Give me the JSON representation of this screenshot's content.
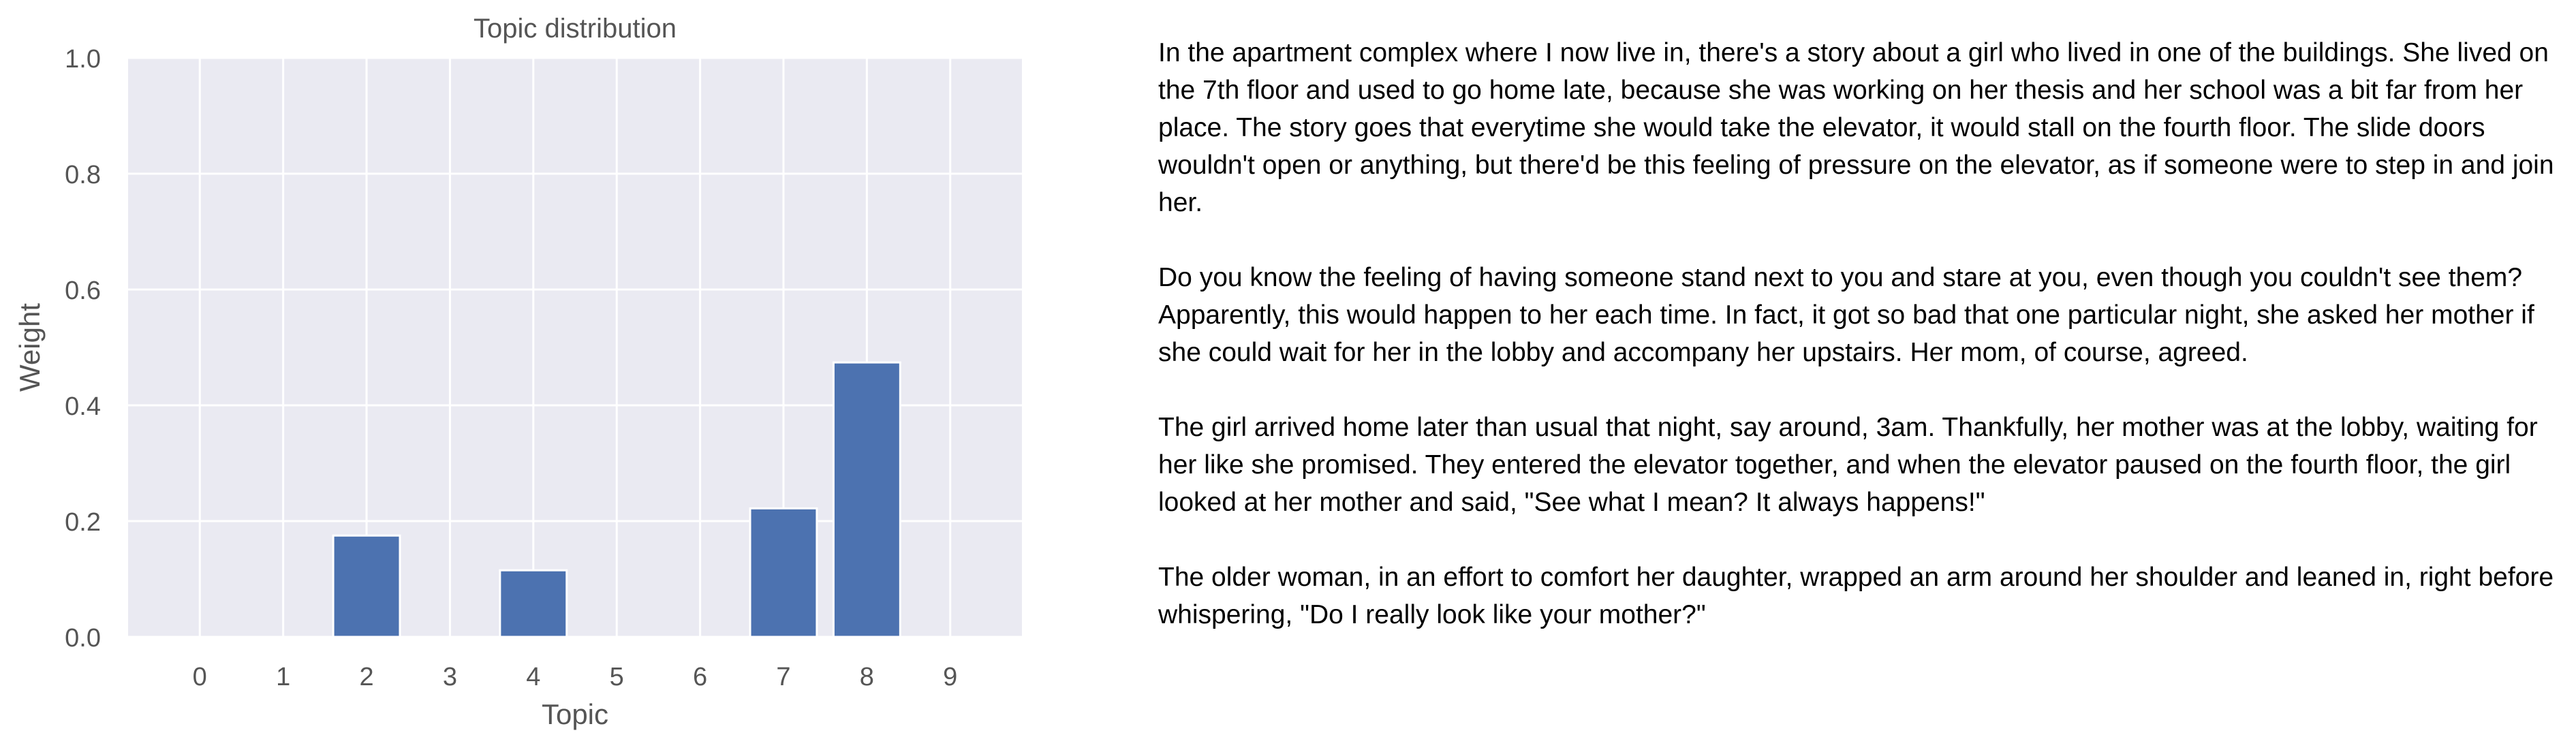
{
  "chart_data": {
    "type": "bar",
    "title": "Topic distribution",
    "xlabel": "Topic",
    "ylabel": "Weight",
    "categories": [
      "0",
      "1",
      "2",
      "3",
      "4",
      "5",
      "6",
      "7",
      "8",
      "9"
    ],
    "values": [
      0.0,
      0.0,
      0.175,
      0.0,
      0.115,
      0.0,
      0.0,
      0.222,
      0.474,
      0.0
    ],
    "ylim": [
      0.0,
      1.0
    ],
    "yticks": [
      "0.0",
      "0.2",
      "0.4",
      "0.6",
      "0.8",
      "1.0"
    ],
    "grid": true,
    "colors": {
      "bar": "#4c72b0",
      "plot_background": "#eaeaf2",
      "grid": "#ffffff",
      "text": "#555555"
    }
  },
  "story": {
    "paragraphs": [
      "In the apartment complex where I now live in, there's a story about a girl who lived in one of the buildings. She lived on the 7th floor and used to go home late, because she was working on her thesis and her school was a bit far from her place. The story goes that everytime she would take the elevator, it would stall on the fourth floor. The slide doors wouldn't open or anything, but there'd be this feeling of pressure on the elevator, as if someone were to step in and join her.",
      "Do you know the feeling of having someone stand next to you and stare at you, even though you couldn't see them? Apparently, this would happen to her each time. In fact, it got so bad that one particular night, she asked her mother if she could wait for her in the lobby and accompany her upstairs. Her mom, of course, agreed.",
      "The girl arrived home later than usual that night, say around, 3am. Thankfully, her mother was at the lobby, waiting for her like she promised. They entered the elevator together, and when the elevator paused on the fourth floor, the girl looked at her mother and said, \"See what I mean? It always happens!\"",
      "The older woman, in an effort to comfort her daughter, wrapped an arm around her shoulder and leaned in, right before whispering, \"Do I really look like your mother?\""
    ]
  }
}
